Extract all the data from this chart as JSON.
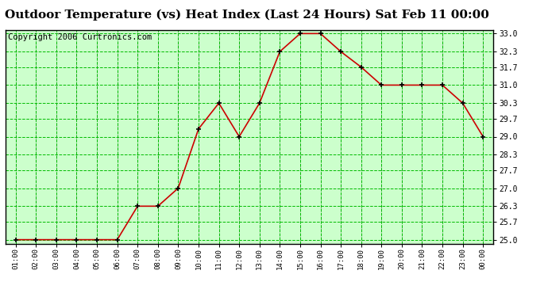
{
  "title": "Outdoor Temperature (vs) Heat Index (Last 24 Hours) Sat Feb 11 00:00",
  "copyright": "Copyright 2006 Curtronics.com",
  "x_labels": [
    "01:00",
    "02:00",
    "03:00",
    "04:00",
    "05:00",
    "06:00",
    "07:00",
    "08:00",
    "09:00",
    "10:00",
    "11:00",
    "12:00",
    "13:00",
    "14:00",
    "15:00",
    "16:00",
    "17:00",
    "18:00",
    "19:00",
    "20:00",
    "21:00",
    "22:00",
    "23:00",
    "00:00"
  ],
  "y_values": [
    25.0,
    25.0,
    25.0,
    25.0,
    25.0,
    25.0,
    26.3,
    26.3,
    27.0,
    29.3,
    30.3,
    29.0,
    30.3,
    32.3,
    33.0,
    33.0,
    32.3,
    31.7,
    31.0,
    31.0,
    31.0,
    31.0,
    30.3,
    29.0
  ],
  "y_ticks": [
    25.0,
    25.7,
    26.3,
    27.0,
    27.7,
    28.3,
    29.0,
    29.7,
    30.3,
    31.0,
    31.7,
    32.3,
    33.0
  ],
  "ylim": [
    24.85,
    33.15
  ],
  "line_color": "#cc0000",
  "marker_color": "#000000",
  "bg_color": "#ffffff",
  "plot_bg_color": "#ccffcc",
  "grid_color": "#00bb00",
  "border_color": "#000000",
  "title_fontsize": 11,
  "copyright_fontsize": 7.5
}
